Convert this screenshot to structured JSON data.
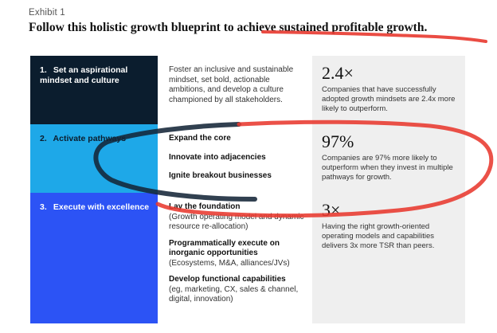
{
  "exhibit": "Exhibit 1",
  "headline": "Follow this holistic growth blueprint to achieve sustained profitable growth.",
  "rows": [
    {
      "num": "1.",
      "step": "Set an aspirational mindset and culture",
      "actions": [
        {
          "title": "",
          "sub": "Foster an inclusive and sustainable mindset, set bold, actionable ambitions, and develop a culture championed by all stakeholders."
        }
      ],
      "stat": "2.4×",
      "stat_desc": "Companies that have successfully adopted growth mindsets are 2.4x more likely to outperform."
    },
    {
      "num": "2.",
      "step": "Activate pathways",
      "actions": [
        {
          "title": "Expand the core",
          "sub": ""
        },
        {
          "title": "Innovate into adjacencies",
          "sub": ""
        },
        {
          "title": "Ignite breakout businesses",
          "sub": ""
        }
      ],
      "stat": "97%",
      "stat_desc": "Companies are 97% more likely to outperform when they invest in multiple pathways for growth."
    },
    {
      "num": "3.",
      "step": "Execute with excellence",
      "actions": [
        {
          "title": "Lay the foundation",
          "sub": "(Growth operating model and dynamic resource re-allocation)"
        },
        {
          "title": "Programmatically execute on inorganic opportunities",
          "sub": "(Ecosystems, M&A, alliances/JVs)"
        },
        {
          "title": "Develop functional capabilities",
          "sub": "(eg, marketing, CX, sales & channel, digital, innovation)"
        }
      ],
      "stat": "3×",
      "stat_desc": "Having the right growth-oriented operating models and capabilities delivers 3x more TSR than peers."
    }
  ],
  "colors": {
    "row1_step": "#0b1d2e",
    "row2_step": "#1ea8e8",
    "row3_step": "#2c53f5",
    "annotation_ink": "#e8392f"
  }
}
